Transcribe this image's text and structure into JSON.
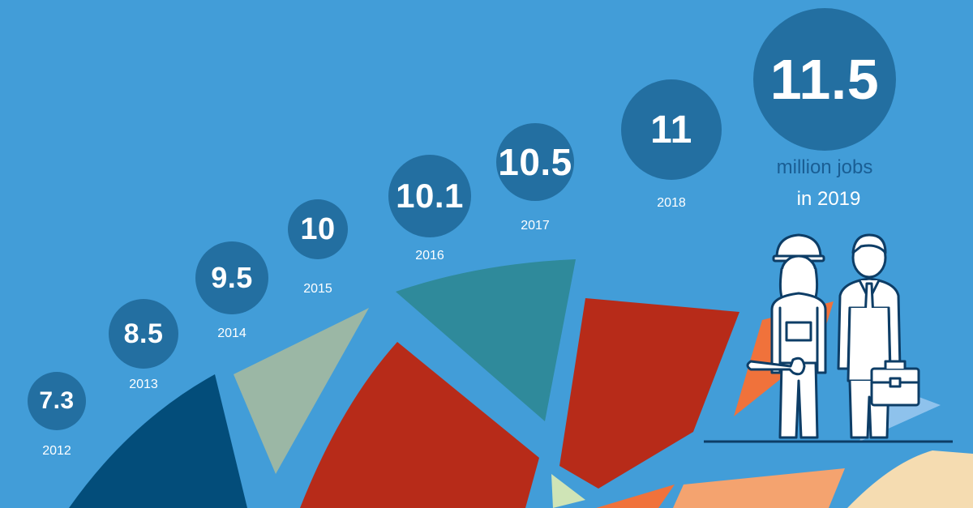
{
  "colors": {
    "background": "#429dd8",
    "bubble": "#236fa1",
    "caption": "#1a5e94"
  },
  "chart_data": {
    "type": "bubble",
    "xlabel": "",
    "ylabel": "",
    "unit": "million jobs",
    "points": [
      {
        "year": "2012",
        "value": 7.3,
        "label": "7.3"
      },
      {
        "year": "2013",
        "value": 8.5,
        "label": "8.5"
      },
      {
        "year": "2014",
        "value": 9.5,
        "label": "9.5"
      },
      {
        "year": "2015",
        "value": 10,
        "label": "10"
      },
      {
        "year": "2016",
        "value": 10.1,
        "label": "10.1"
      },
      {
        "year": "2017",
        "value": 10.5,
        "label": "10.5"
      },
      {
        "year": "2018",
        "value": 11,
        "label": "11"
      },
      {
        "year": "2019",
        "value": 11.5,
        "label": "11.5"
      }
    ],
    "highlight": {
      "value_label": "11.5",
      "caption_line1": "million jobs",
      "caption_line2": "in 2019"
    }
  },
  "illustration": {
    "figures": [
      "female-worker-hardhat-icon",
      "businessman-briefcase-icon"
    ]
  }
}
